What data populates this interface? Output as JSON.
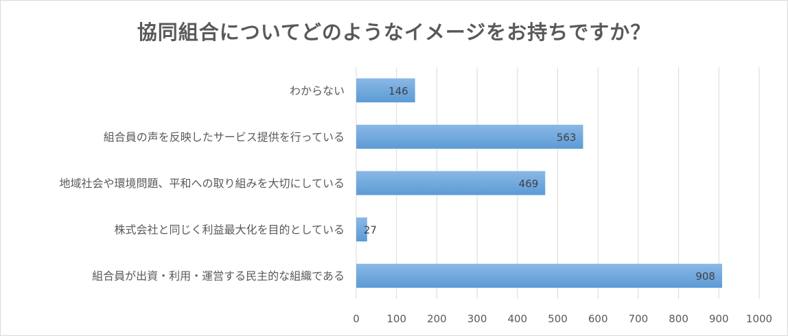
{
  "chart_data": {
    "type": "bar",
    "orientation": "horizontal",
    "title": "協同組合についてどのようなイメージをお持ちですか？",
    "categories": [
      "わからない",
      "組合員の声を反映したサービス提供を行っている",
      "地域社会や環境問題、平和への取り組みを大切にしている",
      "株式会社と同じく利益最大化を目的としている",
      "組合員が出資・利用・運営する民主的な組織である"
    ],
    "values": [
      146,
      563,
      469,
      27,
      908
    ],
    "xlim": [
      0,
      1000
    ],
    "xticks": [
      "0",
      "100",
      "200",
      "300",
      "400",
      "500",
      "600",
      "700",
      "800",
      "900",
      "1000"
    ],
    "grid": true,
    "data_labels": true,
    "bar_color": "#5b9bd5",
    "bar_color_light": "#8ab8e6"
  }
}
